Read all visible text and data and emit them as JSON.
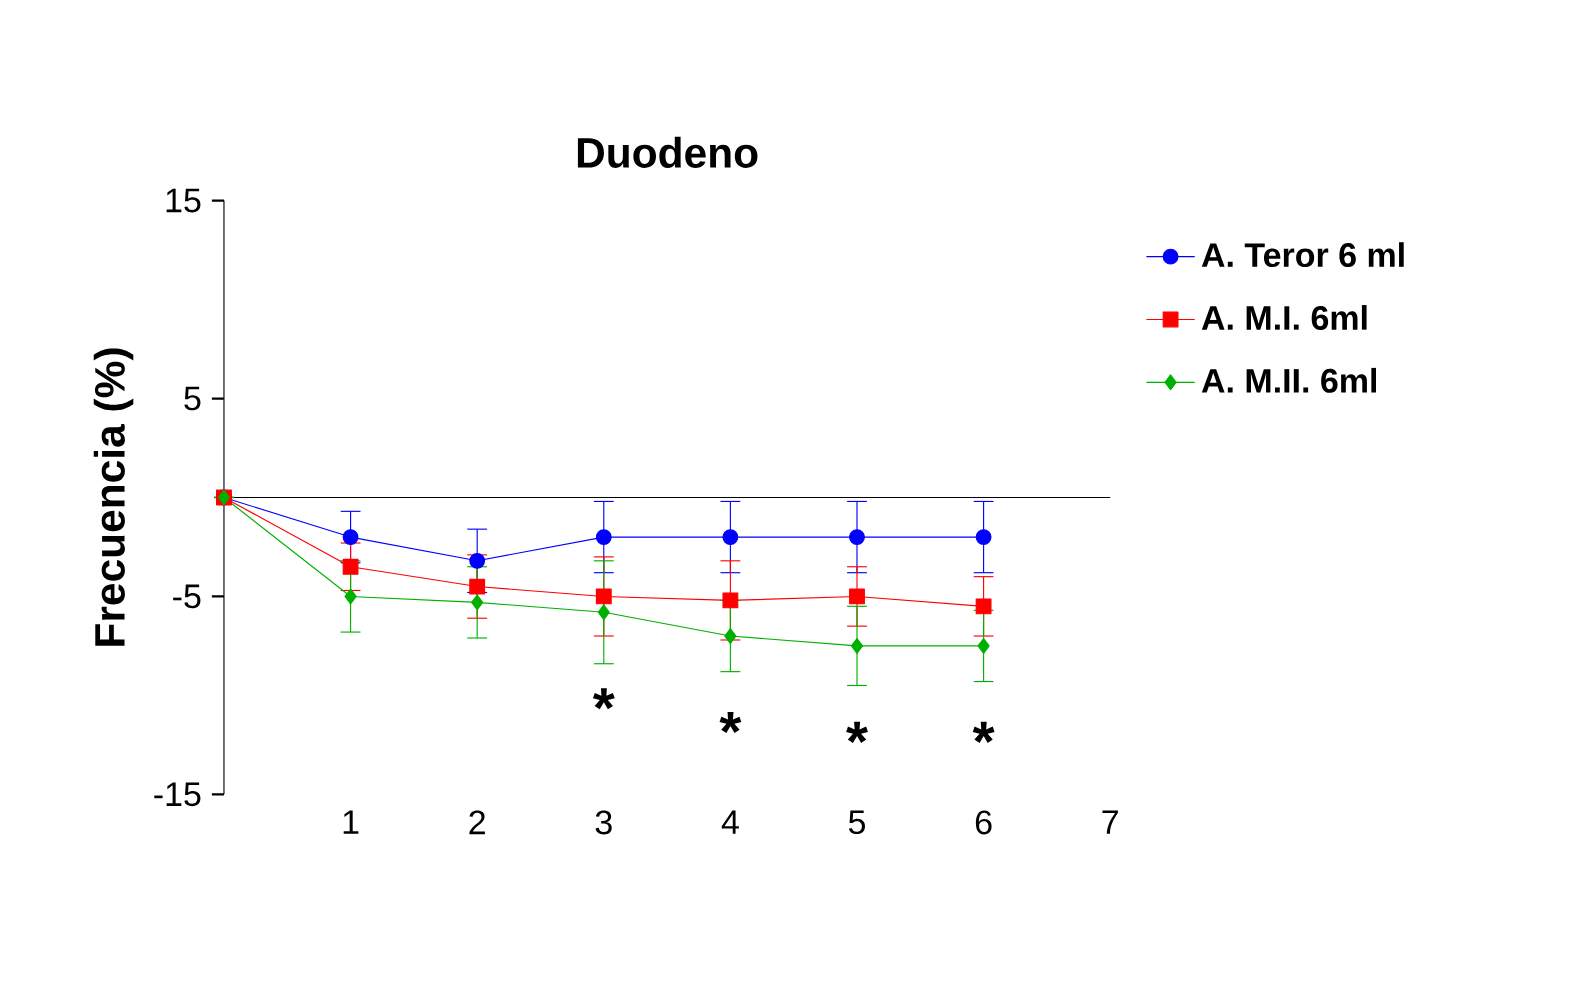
{
  "chart_data": {
    "type": "line",
    "title": "Duodeno",
    "ylabel": "Frecuencia (%)",
    "x": [
      0,
      1,
      2,
      3,
      4,
      5,
      6
    ],
    "xlim": [
      0,
      7
    ],
    "xticks": [
      1,
      2,
      3,
      4,
      5,
      6,
      7
    ],
    "ylim": [
      -15,
      15
    ],
    "yticks": [
      -15,
      -5,
      5,
      15
    ],
    "legend": "top right",
    "grid": false,
    "series": [
      {
        "name": "A. Teror 6 ml",
        "color": "#0000ff",
        "marker": "circle",
        "values": [
          0,
          -2,
          -3.2,
          -2,
          -2,
          -2,
          -2
        ],
        "errors": [
          null,
          1.3,
          1.6,
          1.8,
          1.8,
          1.8,
          1.8
        ]
      },
      {
        "name": "A. M.I. 6ml",
        "color": "#ff0000",
        "marker": "square",
        "values": [
          0,
          -3.5,
          -4.5,
          -5,
          -5.2,
          -5,
          -5.5
        ],
        "errors": [
          null,
          1.2,
          1.6,
          2,
          2,
          1.5,
          1.5
        ]
      },
      {
        "name": "A. M.II. 6ml",
        "color": "#00b000",
        "marker": "diamond",
        "values": [
          0,
          -5,
          -5.3,
          -5.8,
          -7,
          -7.5,
          -7.5
        ],
        "errors": [
          null,
          1.8,
          1.8,
          2.6,
          1.8,
          2,
          1.8
        ]
      }
    ],
    "annotations": [
      {
        "text": "*",
        "x": 3,
        "y": -5.8
      },
      {
        "text": "*",
        "x": 4,
        "y": -7
      },
      {
        "text": "*",
        "x": 5,
        "y": -7.5
      },
      {
        "text": "*",
        "x": 6,
        "y": -7.5
      }
    ]
  }
}
